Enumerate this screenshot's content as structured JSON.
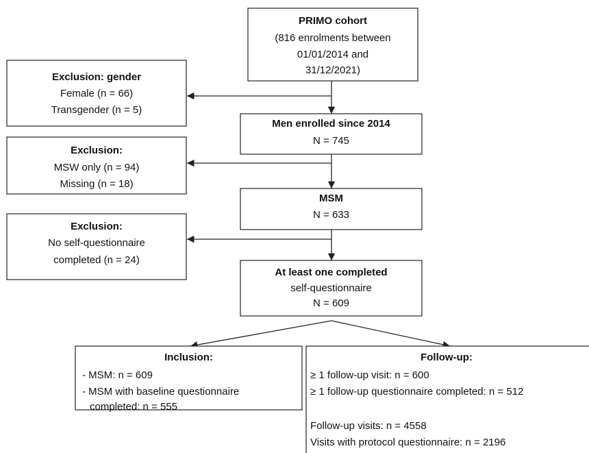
{
  "nodes": [
    {
      "title": "PRIMO cohort",
      "lines": [
        "(816 enrolments between",
        "01/01/2014 and",
        "31/12/2021)"
      ]
    },
    {
      "title": "Exclusion: gender",
      "lines": [
        "Female (n = 66)",
        "Transgender (n = 5)"
      ]
    },
    {
      "title": "Men enrolled since 2014",
      "lines": [
        "N = 745"
      ]
    },
    {
      "title": "Exclusion:",
      "lines": [
        "MSW only (n = 94)",
        "Missing (n = 18)"
      ]
    },
    {
      "title": "MSM",
      "lines": [
        "N = 633"
      ]
    },
    {
      "title": "Exclusion:",
      "lines": [
        "No self-questionnaire",
        "completed (n = 24)"
      ]
    },
    {
      "title": "At least one completed",
      "lines": [
        "self-questionnaire",
        "N = 609"
      ]
    },
    {
      "title": "Inclusion:",
      "lines": [
        "- MSM: n = 609",
        "- MSM with baseline questionnaire",
        "completed: n = 555"
      ]
    },
    {
      "title": "Follow-up:",
      "lines": [
        "≥ 1 follow-up visit: n = 600",
        "≥ 1 follow-up questionnaire completed: n = 512",
        "Follow-up visits: n = 4558",
        "Visits with protocol questionnaire: n = 2196"
      ]
    }
  ]
}
